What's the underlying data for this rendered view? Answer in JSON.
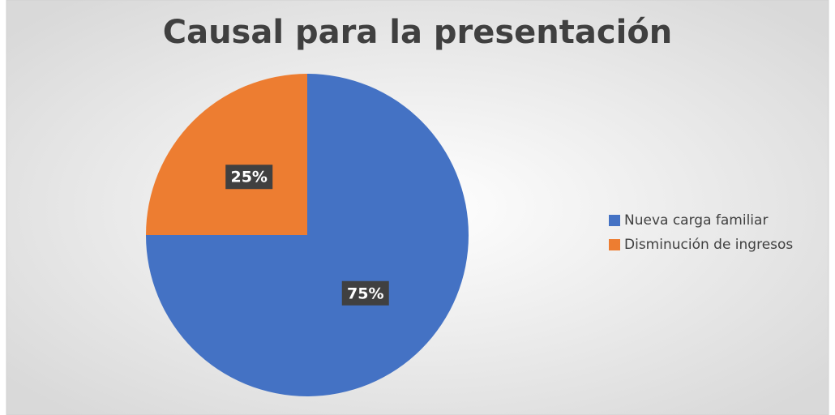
{
  "chart_data": {
    "type": "pie",
    "title": "Causal para la presentación",
    "categories": [
      "Nueva carga familiar",
      "Disminución de ingresos"
    ],
    "values": [
      75,
      25
    ],
    "value_labels": [
      "75%",
      "25%"
    ],
    "colors": [
      "#4472c4",
      "#ed7d31"
    ],
    "legend": "right"
  }
}
